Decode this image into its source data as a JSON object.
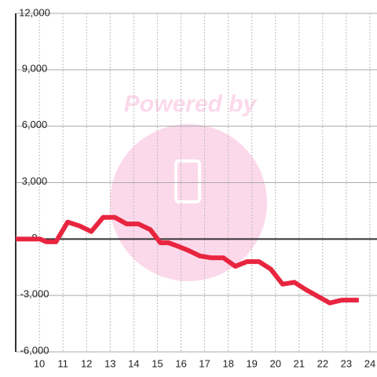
{
  "chart_data": {
    "type": "line",
    "watermark": "Powered by",
    "x": [
      9,
      10.03,
      10.3,
      10.7,
      11.2,
      11.7,
      12.2,
      12.7,
      13.2,
      13.7,
      14.2,
      14.7,
      15.13,
      15.47,
      15.8,
      16.3,
      16.8,
      17.3,
      17.8,
      18.3,
      18.8,
      19.3,
      19.8,
      20.3,
      20.8,
      21.3,
      21.8,
      22.3,
      22.8,
      23.53
    ],
    "series": [
      {
        "color": "#e8253f",
        "values": [
          0,
          0,
          -150,
          -150,
          900,
          700,
          400,
          1150,
          1150,
          800,
          800,
          500,
          -200,
          -200,
          -350,
          -600,
          -900,
          -1000,
          -1000,
          -1450,
          -1200,
          -1200,
          -1600,
          -2400,
          -2300,
          -2700,
          -3050,
          -3400,
          -3250,
          -3250
        ]
      }
    ],
    "xlim": [
      9,
      24.3
    ],
    "xticks": [
      10,
      11,
      12,
      13,
      14,
      15,
      16,
      17,
      18,
      19,
      20,
      21,
      22,
      23,
      24
    ],
    "ylim": [
      -6000,
      12000
    ],
    "yticks": [
      {
        "value": -6000,
        "label": "-6,000"
      },
      {
        "value": -3000,
        "label": "-3,000"
      },
      0,
      {
        "value": 3000,
        "label": "3,000"
      },
      {
        "value": 6000,
        "label": "6,000"
      },
      {
        "value": 9000,
        "label": "9,000"
      },
      {
        "value": 12000,
        "label": "12,000"
      }
    ],
    "grid": true
  }
}
